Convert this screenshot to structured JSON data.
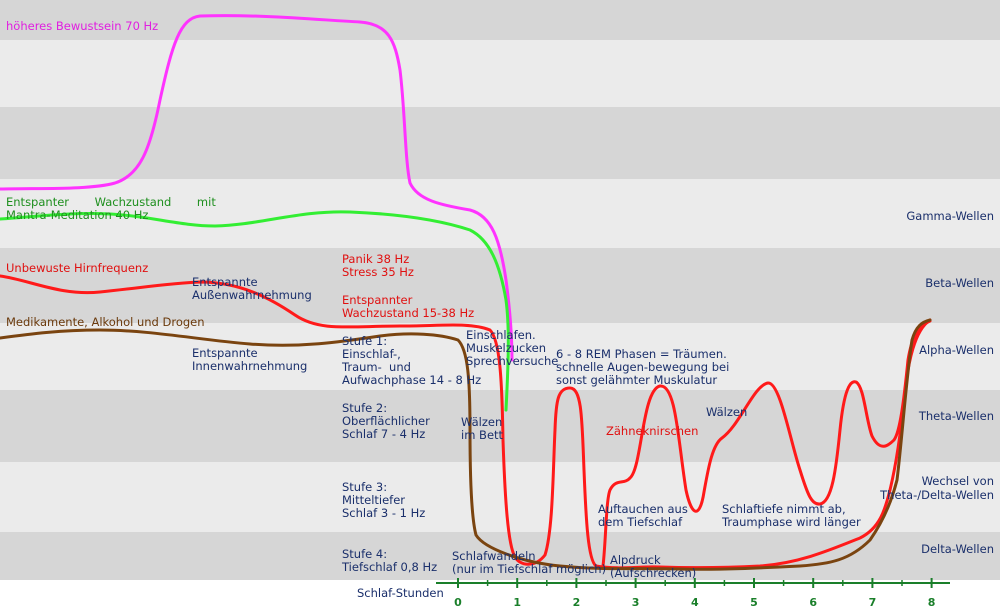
{
  "labels": {
    "higher_consciousness": "höheres Bewustsein 70 Hz",
    "relaxed_waking_1": "Entspanter       Wachzustand       mit",
    "relaxed_waking_2": "Mantra-Meditation 40 Hz",
    "unconscious": "Unbewuste Hirnfrequenz",
    "drugs": "Medikamente, Alkohol und Drogen",
    "outer_perception": "Entspannte\nAußenwahrnehmung",
    "inner_perception": "Entspannte\nInnenwahrnehmung",
    "panic": "Panik 38 Hz\nStress 35 Hz",
    "relaxed_waking_red": "Entspannter\nWachzustand 15-38 Hz",
    "stage1": "Stufe 1:\nEinschlaf-,\nTraum-  und\nAufwachphase 14 - 8 Hz",
    "stage2": "Stufe 2:\nOberflächlicher\nSchlaf 7 - 4 Hz",
    "stage3": "Stufe 3:\nMitteltiefer\nSchlaf 3 - 1 Hz",
    "stage4": "Stufe 4:\nTiefschlaf 0,8 Hz",
    "falling_asleep": "Einschlafen.\nMuskelzucken\nSprechversuche",
    "rem": "6 - 8 REM Phasen = Träumen.\nschnelle Augen-bewegung bei\nsonst gelähmter Muskulatur",
    "tossing_bed": "Wälzen\nim Bett",
    "grinding": "Zähneknirschen",
    "tossing": "Wälzen",
    "surfacing": "Auftauchen aus\ndem Tiefschlaf",
    "sleep_depth": "Schlaftiefe nimmt ab,\nTraumphase wird länger",
    "sleepwalking": "Schlafwandeln\n(nur im Tiefschlaf möglich)",
    "nightmare": "Alpdruck\n(Aufschrecken)"
  },
  "bands": [
    "Gamma-Wellen",
    "Beta-Wellen",
    "Alpha-Wellen",
    "Theta-Wellen",
    "Wechsel von\nTheta-/Delta-Wellen",
    "Delta-Wellen"
  ],
  "axis": {
    "title": "Schlaf-Stunden",
    "ticks": [
      "0",
      "1",
      "2",
      "3",
      "4",
      "5",
      "6",
      "7",
      "8"
    ]
  },
  "colors": {
    "band_dark": "#d6d6d6",
    "band_light": "#ebebeb",
    "magenta": "#ff33ff",
    "green": "#33ee33",
    "red": "#ff1a1a",
    "brown": "#7a4410",
    "axis": "#1a7f2a",
    "text_blue": "#1a2f6b"
  }
}
